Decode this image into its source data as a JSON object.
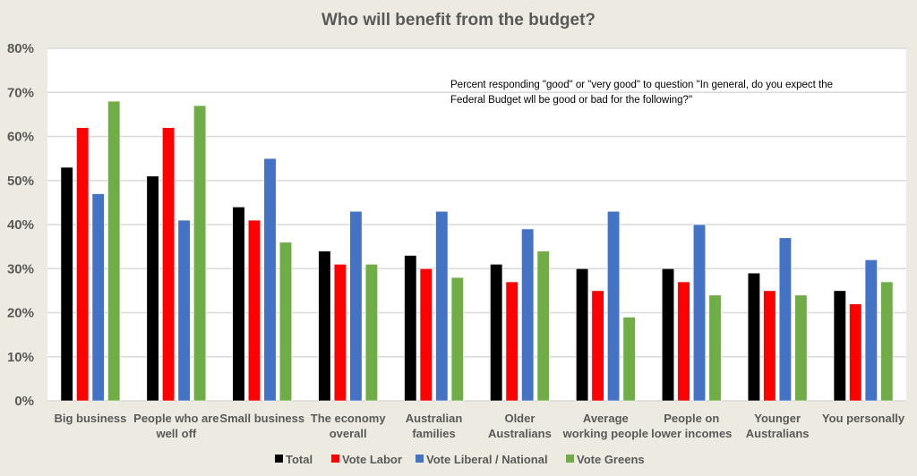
{
  "chart_data": {
    "type": "bar",
    "title": "Who will benefit from the budget?",
    "annotation": "Percent responding \"good\" or \"very good\" to question \"In general, do you expect the Federal Budget wll be good or bad for the following?\"",
    "annotation_lines": [
      "Percent responding \"good\" or \"very good\" to question \"In general, do you expect the",
      "Federal Budget wll be good or bad for the following?\""
    ],
    "xlabel": "",
    "ylabel": "",
    "ylim": [
      0,
      80
    ],
    "yticks": [
      0,
      10,
      20,
      30,
      40,
      50,
      60,
      70,
      80
    ],
    "ytick_labels": [
      "0%",
      "10%",
      "20%",
      "30%",
      "40%",
      "50%",
      "60%",
      "70%",
      "80%"
    ],
    "grid": true,
    "legend_position": "bottom",
    "categories": [
      [
        "Big business"
      ],
      [
        "People who are",
        "well off"
      ],
      [
        "Small business"
      ],
      [
        "The economy",
        "overall"
      ],
      [
        "Australian",
        "families"
      ],
      [
        "Older",
        "Australians"
      ],
      [
        "Average",
        "working people"
      ],
      [
        "People on",
        "lower incomes"
      ],
      [
        "Younger",
        "Australians"
      ],
      [
        "You personally"
      ]
    ],
    "series": [
      {
        "name": "Total",
        "color": "#000000",
        "values": [
          53,
          51,
          44,
          34,
          33,
          31,
          30,
          30,
          29,
          25
        ]
      },
      {
        "name": "Vote Labor",
        "color": "#ff0000",
        "values": [
          62,
          62,
          41,
          31,
          30,
          27,
          25,
          27,
          25,
          22
        ]
      },
      {
        "name": "Vote Liberal / National",
        "color": "#4472c4",
        "values": [
          47,
          41,
          55,
          43,
          43,
          39,
          43,
          40,
          37,
          32
        ]
      },
      {
        "name": "Vote Greens",
        "color": "#70ad47",
        "values": [
          68,
          67,
          36,
          31,
          28,
          34,
          19,
          24,
          24,
          27
        ]
      }
    ]
  }
}
